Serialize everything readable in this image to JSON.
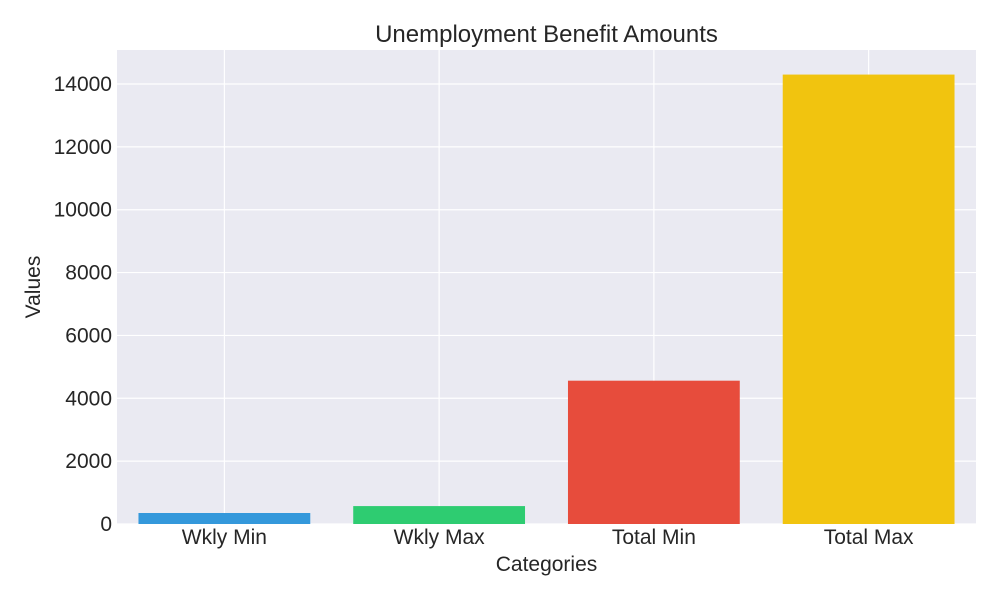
{
  "chart_data": {
    "type": "bar",
    "title": "Unemployment Benefit Amounts",
    "xlabel": "Categories",
    "ylabel": "Values",
    "categories": [
      "Wkly Min",
      "Wkly Max",
      "Total Min",
      "Total Max"
    ],
    "values": [
      350,
      570,
      4560,
      14300
    ],
    "ylim": [
      0,
      15000
    ],
    "yticks": [
      0,
      2000,
      4000,
      6000,
      8000,
      10000,
      12000,
      14000
    ],
    "grid": true,
    "legend": "none",
    "colors": [
      "#3498db",
      "#2ecc71",
      "#e74c3c",
      "#f1c40f"
    ],
    "background": "#eaeaf2",
    "grid_color": "#ffffff"
  }
}
